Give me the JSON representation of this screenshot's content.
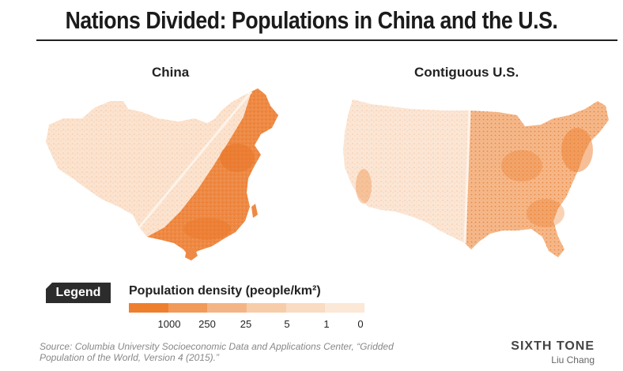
{
  "title": "Nations Divided: Populations in China and the U.S.",
  "maps": {
    "china_label": "China",
    "us_label": "Contiguous U.S."
  },
  "legend": {
    "tag": "Legend",
    "title": "Population density (people/km²)",
    "ticks": [
      "1000",
      "250",
      "25",
      "5",
      "1",
      "0"
    ],
    "colors": [
      "#ee7f2f",
      "#f19a59",
      "#f4b586",
      "#f7cda9",
      "#f9dcc2",
      "#fbe8d7"
    ]
  },
  "source": "Source: Columbia University Socioeconomic Data and Applications Center, “Gridded Population of the World, Version 4 (2015).”",
  "brand": {
    "name": "SIXTH TONE",
    "author": "Liu Chang"
  },
  "palette": {
    "dense": "#ee7f2f",
    "sparse": "#fbe3cf"
  }
}
